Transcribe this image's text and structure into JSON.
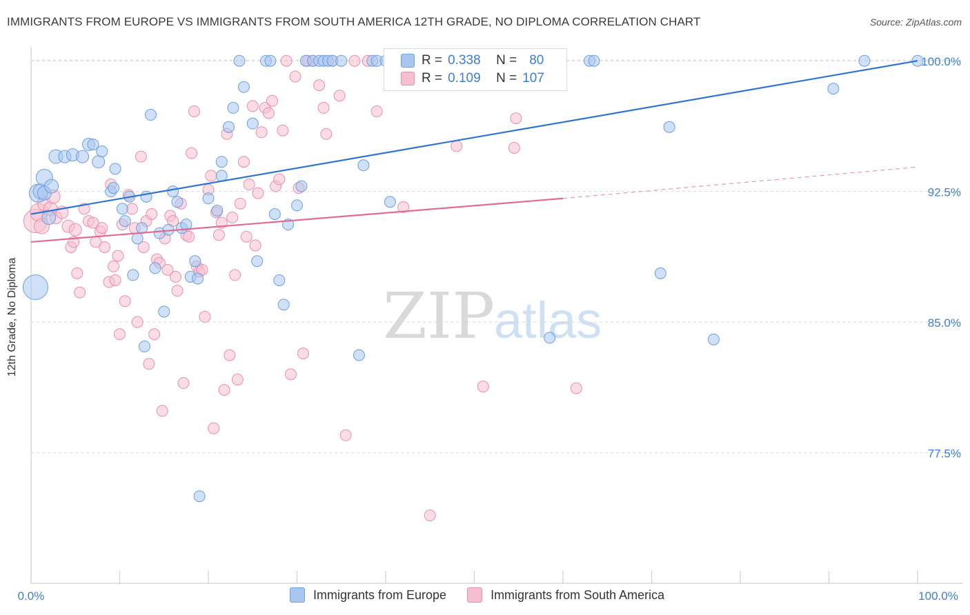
{
  "title": "IMMIGRANTS FROM EUROPE VS IMMIGRANTS FROM SOUTH AMERICA 12TH GRADE, NO DIPLOMA CORRELATION CHART",
  "source": "Source: ZipAtlas.com",
  "watermark": {
    "zip": "ZIP",
    "atlas": "atlas"
  },
  "legend": {
    "r_label": "R =",
    "n_label": "N =",
    "europe": {
      "r": "0.338",
      "n": "80"
    },
    "south_america": {
      "r": "0.109",
      "n": "107"
    }
  },
  "colors": {
    "europe_fill": "#a9c7ee",
    "europe_stroke": "#6a9fe0",
    "europe_line": "#2e74d0",
    "sa_fill": "#f6bfd0",
    "sa_stroke": "#ea8fac",
    "sa_line": "#e06b95",
    "tick_text": "#3b7dd8",
    "grid": "#d9d9d9"
  },
  "chart_data": {
    "type": "scatter",
    "title": "IMMIGRANTS FROM EUROPE VS IMMIGRANTS FROM SOUTH AMERICA 12TH GRADE, NO DIPLOMA CORRELATION CHART",
    "xlabel": "",
    "ylabel": "12th Grade, No Diploma",
    "xlim": [
      0,
      100
    ],
    "ylim": [
      70.0,
      100.8
    ],
    "x_tick_labels": [
      "0.0%",
      "100.0%"
    ],
    "y_ticks": [
      77.5,
      85.0,
      92.5,
      100.0
    ],
    "y_tick_labels": [
      "77.5%",
      "85.0%",
      "92.5%",
      "100.0%"
    ],
    "grid": true,
    "legend_position": "bottom",
    "series": [
      {
        "name": "Immigrants from Europe",
        "trend": {
          "x": [
            0,
            100
          ],
          "y": [
            91.2,
            100.0
          ]
        },
        "points": [
          [
            0.5,
            87.0,
            18
          ],
          [
            0.8,
            92.4,
            13
          ],
          [
            1.1,
            92.5,
            11
          ],
          [
            1.5,
            93.3,
            12
          ],
          [
            1.5,
            92.4,
            10
          ],
          [
            2.0,
            91.0,
            10
          ],
          [
            2.3,
            92.8,
            10
          ],
          [
            2.8,
            94.5,
            10
          ],
          [
            3.8,
            94.5,
            9
          ],
          [
            4.7,
            94.6,
            9
          ],
          [
            5.8,
            94.5,
            9
          ],
          [
            6.5,
            95.2,
            9
          ],
          [
            7.0,
            95.2,
            8
          ],
          [
            7.6,
            94.2,
            9
          ],
          [
            8.0,
            94.8,
            8
          ],
          [
            9.0,
            92.5,
            8
          ],
          [
            9.3,
            92.7,
            8
          ],
          [
            9.5,
            93.8,
            8
          ],
          [
            10.3,
            91.5,
            8
          ],
          [
            10.6,
            90.8,
            8
          ],
          [
            11.1,
            92.2,
            8
          ],
          [
            11.5,
            87.7,
            8
          ],
          [
            12.0,
            89.8,
            8
          ],
          [
            12.5,
            90.4,
            8
          ],
          [
            12.8,
            83.6,
            8
          ],
          [
            13.0,
            92.2,
            8
          ],
          [
            13.5,
            96.9,
            8
          ],
          [
            14.0,
            88.1,
            8
          ],
          [
            14.5,
            90.1,
            8
          ],
          [
            15.0,
            85.6,
            8
          ],
          [
            15.5,
            90.3,
            8
          ],
          [
            16.0,
            92.5,
            8
          ],
          [
            16.5,
            91.9,
            8
          ],
          [
            17.0,
            90.4,
            8
          ],
          [
            17.5,
            90.6,
            8
          ],
          [
            18.0,
            87.6,
            8
          ],
          [
            18.5,
            88.5,
            8
          ],
          [
            18.8,
            87.5,
            8
          ],
          [
            19.0,
            75.0,
            8
          ],
          [
            20.0,
            92.1,
            8
          ],
          [
            21.0,
            91.4,
            8
          ],
          [
            21.5,
            93.4,
            8
          ],
          [
            21.5,
            94.2,
            8
          ],
          [
            22.3,
            96.2,
            8
          ],
          [
            22.8,
            97.3,
            8
          ],
          [
            23.5,
            100.0,
            8
          ],
          [
            24.0,
            98.5,
            8
          ],
          [
            25.0,
            96.4,
            8
          ],
          [
            25.5,
            88.5,
            8
          ],
          [
            26.5,
            100.0,
            8
          ],
          [
            27.0,
            100.0,
            8
          ],
          [
            27.5,
            91.2,
            8
          ],
          [
            28.0,
            87.4,
            8
          ],
          [
            28.5,
            86.0,
            8
          ],
          [
            29.0,
            90.6,
            8
          ],
          [
            30.0,
            91.7,
            8
          ],
          [
            30.5,
            92.8,
            8
          ],
          [
            31.0,
            100.0,
            8
          ],
          [
            31.8,
            100.0,
            8
          ],
          [
            32.5,
            100.0,
            8
          ],
          [
            33.0,
            100.0,
            8
          ],
          [
            33.5,
            100.0,
            8
          ],
          [
            34.0,
            100.0,
            8
          ],
          [
            35.0,
            100.0,
            8
          ],
          [
            37.0,
            83.1,
            8
          ],
          [
            37.5,
            94.0,
            8
          ],
          [
            38.5,
            100.0,
            8
          ],
          [
            39.0,
            100.0,
            8
          ],
          [
            40.0,
            100.0,
            8
          ],
          [
            40.5,
            91.9,
            8
          ],
          [
            44.0,
            100.0,
            8
          ],
          [
            45.0,
            100.0,
            8
          ],
          [
            58.5,
            84.1,
            8
          ],
          [
            63.0,
            100.0,
            8
          ],
          [
            63.5,
            100.0,
            8
          ],
          [
            71.0,
            87.8,
            8
          ],
          [
            72.0,
            96.2,
            8
          ],
          [
            77.0,
            84.0,
            8
          ],
          [
            90.5,
            98.4,
            8
          ],
          [
            94.0,
            100.0,
            8
          ],
          [
            100.0,
            100.0,
            8
          ]
        ]
      },
      {
        "name": "Immigrants from South America",
        "trend": {
          "x": [
            0,
            60
          ],
          "y": [
            89.6,
            92.1
          ]
        },
        "trend_ext": {
          "x": [
            60,
            100
          ],
          "y": [
            92.1,
            93.9
          ]
        },
        "points": [
          [
            0.5,
            90.8,
            17
          ],
          [
            0.9,
            91.3,
            13
          ],
          [
            1.2,
            90.5,
            11
          ],
          [
            1.5,
            91.8,
            10
          ],
          [
            2.2,
            91.5,
            10
          ],
          [
            2.5,
            92.2,
            10
          ],
          [
            2.8,
            91.0,
            9
          ],
          [
            3.5,
            91.3,
            9
          ],
          [
            4.2,
            90.5,
            9
          ],
          [
            4.5,
            89.3,
            8
          ],
          [
            4.8,
            89.6,
            8
          ],
          [
            5.0,
            90.3,
            9
          ],
          [
            5.2,
            87.8,
            8
          ],
          [
            5.5,
            86.7,
            8
          ],
          [
            6.0,
            91.5,
            8
          ],
          [
            6.5,
            90.8,
            8
          ],
          [
            7.0,
            90.7,
            8
          ],
          [
            7.3,
            89.6,
            8
          ],
          [
            7.8,
            90.2,
            8
          ],
          [
            8.0,
            90.4,
            8
          ],
          [
            8.3,
            89.3,
            8
          ],
          [
            8.8,
            87.3,
            8
          ],
          [
            9.0,
            92.9,
            8
          ],
          [
            9.3,
            88.2,
            8
          ],
          [
            9.5,
            87.4,
            8
          ],
          [
            9.8,
            88.8,
            8
          ],
          [
            10.0,
            84.3,
            8
          ],
          [
            10.3,
            90.6,
            8
          ],
          [
            10.6,
            86.2,
            8
          ],
          [
            11.0,
            92.3,
            8
          ],
          [
            11.4,
            91.5,
            8
          ],
          [
            11.7,
            90.4,
            8
          ],
          [
            12.0,
            85.0,
            8
          ],
          [
            12.4,
            94.5,
            8
          ],
          [
            12.7,
            89.3,
            8
          ],
          [
            13.0,
            90.8,
            8
          ],
          [
            13.3,
            82.6,
            8
          ],
          [
            13.6,
            91.2,
            8
          ],
          [
            13.9,
            84.3,
            8
          ],
          [
            14.2,
            88.6,
            8
          ],
          [
            14.5,
            88.4,
            8
          ],
          [
            14.8,
            79.9,
            8
          ],
          [
            15.1,
            89.8,
            8
          ],
          [
            15.4,
            88.0,
            8
          ],
          [
            15.7,
            91.1,
            8
          ],
          [
            16.0,
            90.8,
            8
          ],
          [
            16.3,
            87.6,
            8
          ],
          [
            16.5,
            86.8,
            8
          ],
          [
            16.9,
            91.8,
            8
          ],
          [
            17.2,
            81.5,
            8
          ],
          [
            17.5,
            90.0,
            8
          ],
          [
            17.8,
            89.9,
            8
          ],
          [
            18.1,
            94.7,
            8
          ],
          [
            18.4,
            97.1,
            8
          ],
          [
            18.7,
            88.2,
            8
          ],
          [
            19.0,
            87.9,
            8
          ],
          [
            19.3,
            88.0,
            8
          ],
          [
            19.6,
            85.3,
            8
          ],
          [
            20.0,
            92.6,
            8
          ],
          [
            20.3,
            93.4,
            8
          ],
          [
            20.6,
            78.9,
            8
          ],
          [
            20.9,
            91.3,
            8
          ],
          [
            21.2,
            90.0,
            8
          ],
          [
            21.5,
            90.7,
            8
          ],
          [
            21.8,
            81.1,
            8
          ],
          [
            22.1,
            95.8,
            8
          ],
          [
            22.4,
            83.1,
            8
          ],
          [
            22.7,
            91.0,
            8
          ],
          [
            23.0,
            87.7,
            8
          ],
          [
            23.3,
            81.7,
            8
          ],
          [
            23.6,
            91.8,
            8
          ],
          [
            24.0,
            94.2,
            8
          ],
          [
            24.3,
            89.9,
            8
          ],
          [
            24.6,
            92.9,
            8
          ],
          [
            25.0,
            97.4,
            8
          ],
          [
            25.3,
            89.4,
            8
          ],
          [
            25.6,
            92.4,
            8
          ],
          [
            26.0,
            95.9,
            8
          ],
          [
            26.4,
            97.3,
            8
          ],
          [
            26.8,
            97.0,
            8
          ],
          [
            27.2,
            97.7,
            8
          ],
          [
            27.6,
            92.8,
            8
          ],
          [
            28.0,
            93.2,
            8
          ],
          [
            28.4,
            96.0,
            8
          ],
          [
            28.8,
            100.0,
            8
          ],
          [
            29.3,
            82.0,
            8
          ],
          [
            29.8,
            99.1,
            8
          ],
          [
            30.2,
            92.7,
            8
          ],
          [
            30.7,
            83.2,
            8
          ],
          [
            31.2,
            100.0,
            8
          ],
          [
            31.8,
            100.0,
            8
          ],
          [
            32.5,
            98.6,
            8
          ],
          [
            33.0,
            97.3,
            8
          ],
          [
            33.3,
            95.8,
            8
          ],
          [
            34.0,
            100.0,
            8
          ],
          [
            34.8,
            98.0,
            8
          ],
          [
            35.5,
            78.5,
            8
          ],
          [
            36.5,
            100.0,
            8
          ],
          [
            38.0,
            100.0,
            8
          ],
          [
            39.0,
            97.1,
            8
          ],
          [
            42.0,
            91.6,
            8
          ],
          [
            44.0,
            100.0,
            8
          ],
          [
            45.0,
            73.9,
            8
          ],
          [
            48.0,
            95.1,
            8
          ],
          [
            51.0,
            81.3,
            8
          ],
          [
            52.0,
            100.0,
            8
          ],
          [
            54.5,
            95.0,
            8
          ],
          [
            54.7,
            96.7,
            8
          ],
          [
            57.0,
            100.0,
            8
          ],
          [
            61.5,
            81.2,
            8
          ]
        ]
      }
    ]
  }
}
